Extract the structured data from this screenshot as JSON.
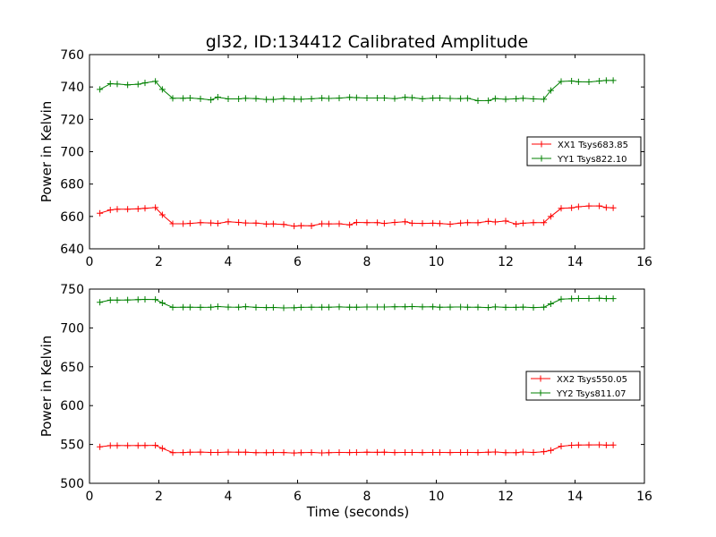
{
  "figure_title": "gl32, ID:134412 Calibrated Amplitude",
  "colors": {
    "red": "#ff0000",
    "green": "#008000",
    "axis": "#000000"
  },
  "chart_data": [
    {
      "type": "line",
      "title": "gl32, ID:134412 Calibrated Amplitude",
      "xlabel": "",
      "ylabel": "Power in Kelvin",
      "xlim": [
        0,
        16
      ],
      "ylim": [
        640,
        760
      ],
      "xticks": [
        0,
        2,
        4,
        6,
        8,
        10,
        12,
        14,
        16
      ],
      "yticks": [
        640,
        660,
        680,
        700,
        720,
        740,
        760
      ],
      "grid": false,
      "legend_position": "right",
      "x": [
        0.3,
        0.6,
        0.8,
        1.1,
        1.4,
        1.6,
        1.9,
        2.1,
        2.4,
        2.7,
        2.9,
        3.2,
        3.5,
        3.7,
        4.0,
        4.3,
        4.5,
        4.8,
        5.1,
        5.3,
        5.6,
        5.9,
        6.1,
        6.4,
        6.7,
        6.9,
        7.2,
        7.5,
        7.7,
        8.0,
        8.3,
        8.5,
        8.8,
        9.1,
        9.3,
        9.6,
        9.9,
        10.1,
        10.4,
        10.7,
        10.9,
        11.2,
        11.5,
        11.7,
        12.0,
        12.3,
        12.5,
        12.8,
        13.1,
        13.3,
        13.6,
        13.9,
        14.1,
        14.4,
        14.7,
        14.9,
        15.1
      ],
      "series": [
        {
          "name": "XX1 Tsys683.85",
          "color": "#ff0000",
          "values": [
            662,
            664,
            664.5,
            664.5,
            664.7,
            665,
            665.5,
            661,
            655.5,
            655.5,
            655.7,
            656.2,
            656,
            655.7,
            656.7,
            656.3,
            656,
            655.9,
            655.3,
            655.4,
            655.1,
            654,
            654.3,
            654.2,
            655.5,
            655.4,
            655.5,
            654.8,
            656.3,
            656.2,
            656.2,
            655.7,
            656.3,
            656.7,
            655.8,
            655.7,
            655.8,
            655.6,
            655.2,
            655.9,
            656.2,
            656.1,
            657,
            656.6,
            657.2,
            655.3,
            655.8,
            656.2,
            656.2,
            660,
            665,
            665.3,
            666,
            666.5,
            666.5,
            665.5,
            665.3
          ]
        },
        {
          "name": "YY1 Tsys822.10",
          "color": "#008000",
          "values": [
            738.5,
            742,
            741.8,
            741.3,
            741.7,
            742.5,
            743.5,
            738.5,
            733,
            733,
            733.2,
            732.7,
            732,
            733.7,
            732.6,
            732.6,
            733,
            732.8,
            732.3,
            732.3,
            732.8,
            732.5,
            732.4,
            732.7,
            733.1,
            732.9,
            733.1,
            733.6,
            733.4,
            733.2,
            733.2,
            733.2,
            732.8,
            733.6,
            733.4,
            732.7,
            733.1,
            733.2,
            732.9,
            732.8,
            733,
            731.5,
            731.6,
            732.8,
            732.4,
            732.7,
            733,
            732.6,
            732.4,
            737.8,
            743.4,
            743.7,
            743.2,
            743.1,
            743.7,
            744,
            744
          ]
        }
      ]
    },
    {
      "type": "line",
      "title": "",
      "xlabel": "Time (seconds)",
      "ylabel": "Power in Kelvin",
      "xlim": [
        0,
        16
      ],
      "ylim": [
        500,
        750
      ],
      "xticks": [
        0,
        2,
        4,
        6,
        8,
        10,
        12,
        14,
        16
      ],
      "yticks": [
        500,
        550,
        600,
        650,
        700,
        750
      ],
      "grid": false,
      "legend_position": "right",
      "x": [
        0.3,
        0.6,
        0.8,
        1.1,
        1.4,
        1.6,
        1.9,
        2.1,
        2.4,
        2.7,
        2.9,
        3.2,
        3.5,
        3.7,
        4.0,
        4.3,
        4.5,
        4.8,
        5.1,
        5.3,
        5.6,
        5.9,
        6.1,
        6.4,
        6.7,
        6.9,
        7.2,
        7.5,
        7.7,
        8.0,
        8.3,
        8.5,
        8.8,
        9.1,
        9.3,
        9.6,
        9.9,
        10.1,
        10.4,
        10.7,
        10.9,
        11.2,
        11.5,
        11.7,
        12.0,
        12.3,
        12.5,
        12.8,
        13.1,
        13.3,
        13.6,
        13.9,
        14.1,
        14.4,
        14.7,
        14.9,
        15.1
      ],
      "series": [
        {
          "name": "XX2 Tsys550.05",
          "color": "#ff0000",
          "values": [
            547,
            548.5,
            548.6,
            548.5,
            548.6,
            548.7,
            548.8,
            545,
            539.5,
            539.6,
            540,
            540.2,
            539.7,
            539.8,
            540.2,
            540,
            540.1,
            539.5,
            539.4,
            539.6,
            539.6,
            539,
            539.5,
            539.7,
            539.2,
            539.4,
            539.8,
            539.6,
            539.7,
            540.1,
            539.9,
            540,
            539.6,
            539.8,
            539.7,
            539.6,
            539.7,
            539.7,
            539.6,
            539.8,
            539.8,
            539.6,
            540,
            540.3,
            539.5,
            539.5,
            540.3,
            539.8,
            540.7,
            542.3,
            547.7,
            549,
            549.3,
            549.4,
            549.5,
            549.1,
            549.3
          ]
        },
        {
          "name": "YY2 Tsys811.07",
          "color": "#008000",
          "values": [
            733,
            735.8,
            735.8,
            736,
            736.4,
            736.8,
            736.6,
            732.2,
            726.5,
            726.6,
            726.6,
            726.5,
            726.6,
            727.5,
            726.8,
            726.7,
            727.4,
            726.5,
            726.3,
            726.4,
            725.8,
            726,
            726.5,
            726.6,
            726.7,
            726.6,
            727.1,
            726.7,
            726.7,
            727,
            727,
            727,
            727.2,
            727.3,
            727.5,
            727.1,
            727.2,
            726.6,
            726.8,
            727,
            726.6,
            726.6,
            726.3,
            727.1,
            726.5,
            726.5,
            726.8,
            726.3,
            726.6,
            731,
            737,
            737.6,
            737.9,
            737.9,
            738.2,
            737.8,
            737.8
          ]
        }
      ]
    }
  ]
}
